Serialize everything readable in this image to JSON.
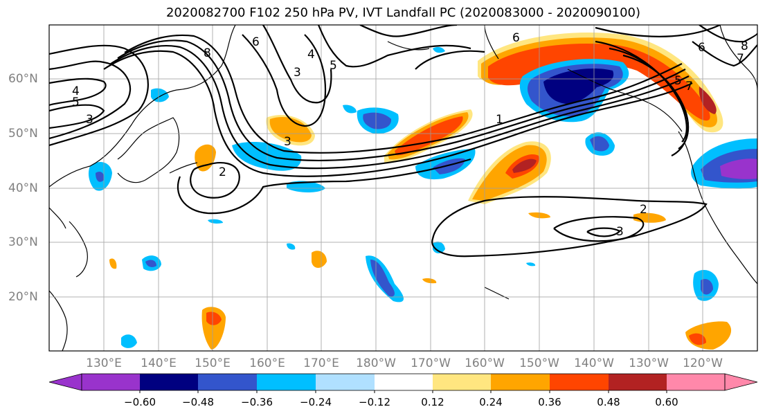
{
  "title": "2020082700 F102 250 hPa PV, IVT Landfall PC (2020083000 - 2020090100)",
  "lat_labels": [
    "60°N",
    "50°N",
    "40°N",
    "30°N",
    "20°N"
  ],
  "lon_labels": [
    "130°E",
    "140°E",
    "150°E",
    "160°E",
    "170°E",
    "180°W",
    "170°W",
    "160°W",
    "150°W",
    "140°W",
    "130°W",
    "120°W"
  ],
  "colorbar": {
    "ticks": [
      "−0.60",
      "−0.48",
      "−0.36",
      "−0.24",
      "−0.12",
      "0.12",
      "0.24",
      "0.36",
      "0.48",
      "0.60"
    ],
    "colors": [
      "#9933cc",
      "#000080",
      "#3355cc",
      "#00bfff",
      "#b0e0ff",
      "#ffffff",
      "#ffe680",
      "#ffa500",
      "#ff4500",
      "#b22222",
      "#ff88aa"
    ]
  },
  "contour_labels": [
    "4",
    "5",
    "3",
    "8",
    "6",
    "4",
    "3",
    "5",
    "2",
    "1",
    "3",
    "2",
    "3",
    "7",
    "8",
    "6",
    "6",
    "7",
    "5"
  ]
}
